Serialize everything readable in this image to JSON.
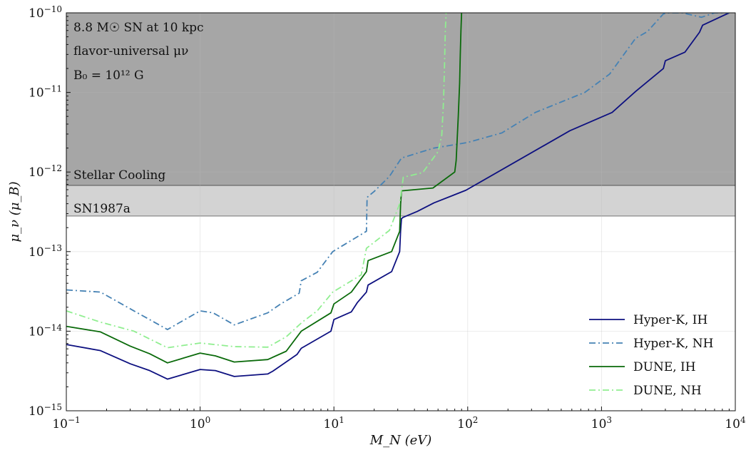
{
  "chart_data": {
    "type": "line",
    "xscale": "log",
    "yscale": "log",
    "xlim": [
      0.1,
      10000
    ],
    "ylim": [
      1e-15,
      1e-10
    ],
    "xlabel": "M_N (eV)",
    "ylabel": "μ_ν (μ_B)",
    "grid": true,
    "legend_position": "lower-right",
    "x_ticks": [
      {
        "base": "10",
        "exp": "−1",
        "value": 0.1
      },
      {
        "base": "10",
        "exp": "0",
        "value": 1
      },
      {
        "base": "10",
        "exp": "1",
        "value": 10
      },
      {
        "base": "10",
        "exp": "2",
        "value": 100
      },
      {
        "base": "10",
        "exp": "3",
        "value": 1000
      },
      {
        "base": "10",
        "exp": "4",
        "value": 10000
      }
    ],
    "y_ticks": [
      {
        "base": "10",
        "exp": "−15",
        "value": 1e-15
      },
      {
        "base": "10",
        "exp": "−14",
        "value": 1e-14
      },
      {
        "base": "10",
        "exp": "−13",
        "value": 1e-13
      },
      {
        "base": "10",
        "exp": "−12",
        "value": 1e-12
      },
      {
        "base": "10",
        "exp": "−11",
        "value": 1e-11
      },
      {
        "base": "10",
        "exp": "−10",
        "value": 1e-10
      }
    ],
    "annotations": [
      {
        "id": "ann-sn",
        "text": "8.8 M☉ SN at 10 kpc"
      },
      {
        "id": "ann-flavor",
        "text": "flavor-universal μν"
      },
      {
        "id": "ann-field",
        "text": "B₀ = 10¹² G"
      }
    ],
    "regions": [
      {
        "name": "Stellar Cooling",
        "y_lower": 6.8e-13,
        "color": "#a6a6a6"
      },
      {
        "name": "SN1987a",
        "y_lower": 2.8e-13,
        "color": "#d3d3d3"
      }
    ],
    "series": [
      {
        "name": "Hyper-K, IH",
        "color": "#0d1080",
        "dash": "solid",
        "x": [
          0.1,
          0.18,
          0.3,
          0.42,
          0.57,
          1.0,
          1.3,
          1.8,
          3.2,
          3.5,
          5.3,
          5.7,
          9.5,
          10.0,
          13.5,
          15.0,
          17.5,
          18.0,
          27.0,
          31.0,
          31.5,
          32.0,
          33.0,
          42.0,
          56.0,
          97.0,
          580.0,
          1200.0,
          1800.0,
          1850.0,
          2900.0,
          3000.0,
          4200.0,
          5400.0,
          5700.0,
          9000.0
        ],
        "y": [
          6.8e-15,
          5.7e-15,
          3.9e-15,
          3.2e-15,
          2.5e-15,
          3.3e-15,
          3.2e-15,
          2.7e-15,
          2.9e-15,
          3.15e-15,
          5.1e-15,
          6.1e-15,
          1e-14,
          1.4e-14,
          1.75e-14,
          2.3e-14,
          3.1e-14,
          3.8e-14,
          5.6e-14,
          1e-13,
          1.8e-13,
          2.6e-13,
          2.7e-13,
          3.2e-13,
          4.1e-13,
          5.9e-13,
          3.3e-12,
          5.6e-12,
          1.03e-11,
          1.07e-11,
          2e-11,
          2.5e-11,
          3.2e-11,
          5.7e-11,
          7e-11,
          1e-10
        ]
      },
      {
        "name": "Hyper-K, NH",
        "color": "#4682b4",
        "dash": "dashdot",
        "x": [
          0.1,
          0.18,
          0.32,
          0.57,
          1.0,
          1.25,
          1.8,
          3.2,
          4.0,
          5.5,
          5.7,
          7.5,
          9.8,
          17.5,
          17.7,
          20.0,
          26.0,
          32.0,
          56.0,
          100.0,
          180.0,
          320.0,
          750.0,
          1150.0,
          1800.0,
          2200.0,
          2900.0,
          3200.0,
          4000.0,
          5600.0,
          7000.0,
          9000.0
        ],
        "y": [
          3.3e-14,
          3.1e-14,
          1.8e-14,
          1.05e-14,
          1.8e-14,
          1.7e-14,
          1.2e-14,
          1.7e-14,
          2.2e-14,
          3e-14,
          4.3e-14,
          5.5e-14,
          1e-13,
          1.8e-13,
          4.8e-13,
          5.7e-13,
          8.8e-13,
          1.5e-12,
          2e-12,
          2.35e-12,
          3.1e-12,
          5.6e-12,
          1e-11,
          1.7e-11,
          4.8e-11,
          5.8e-11,
          9.7e-11,
          1e-10,
          1e-10,
          8.8e-11,
          1e-10,
          1e-10
        ]
      },
      {
        "name": "DUNE, IH",
        "color": "#0a6a0a",
        "dash": "solid",
        "x": [
          0.1,
          0.18,
          0.3,
          0.42,
          0.57,
          1.0,
          1.3,
          1.8,
          3.2,
          4.4,
          5.7,
          9.5,
          10.0,
          13.5,
          17.5,
          18.0,
          27.0,
          31.0,
          31.5,
          32.0,
          55.0,
          80.0,
          82.0,
          85.0,
          87.0,
          88.0,
          89.0,
          90.0
        ],
        "y": [
          1.15e-14,
          9.8e-15,
          6.5e-15,
          5.2e-15,
          4e-15,
          5.3e-15,
          4.9e-15,
          4.1e-15,
          4.4e-15,
          5.6e-15,
          1e-14,
          1.7e-14,
          2.2e-14,
          3.1e-14,
          5.6e-14,
          7.7e-14,
          1e-13,
          1.8e-13,
          3.9e-13,
          5.8e-13,
          6.3e-13,
          1e-12,
          1.4e-12,
          5e-12,
          1.3e-11,
          3e-11,
          6e-11,
          1e-10
        ]
      },
      {
        "name": "DUNE, NH",
        "color": "#90ee90",
        "dash": "dashdot",
        "x": [
          0.1,
          0.18,
          0.32,
          0.57,
          1.0,
          1.8,
          3.2,
          4.4,
          5.8,
          7.5,
          9.8,
          16.0,
          17.5,
          26.0,
          29.5,
          31.0,
          33.0,
          46.0,
          60.0,
          64.0,
          66.0,
          67.0,
          68.0,
          69.0
        ],
        "y": [
          1.8e-14,
          1.3e-14,
          1e-14,
          6.2e-15,
          7.1e-15,
          6.4e-15,
          6.3e-15,
          8.5e-15,
          1.3e-14,
          1.8e-14,
          3.1e-14,
          5.1e-14,
          1.1e-13,
          1.85e-13,
          3.2e-13,
          4e-13,
          8.6e-13,
          9.8e-13,
          1.8e-12,
          2.9e-12,
          8e-12,
          2e-11,
          6e-11,
          1e-10
        ]
      }
    ]
  }
}
